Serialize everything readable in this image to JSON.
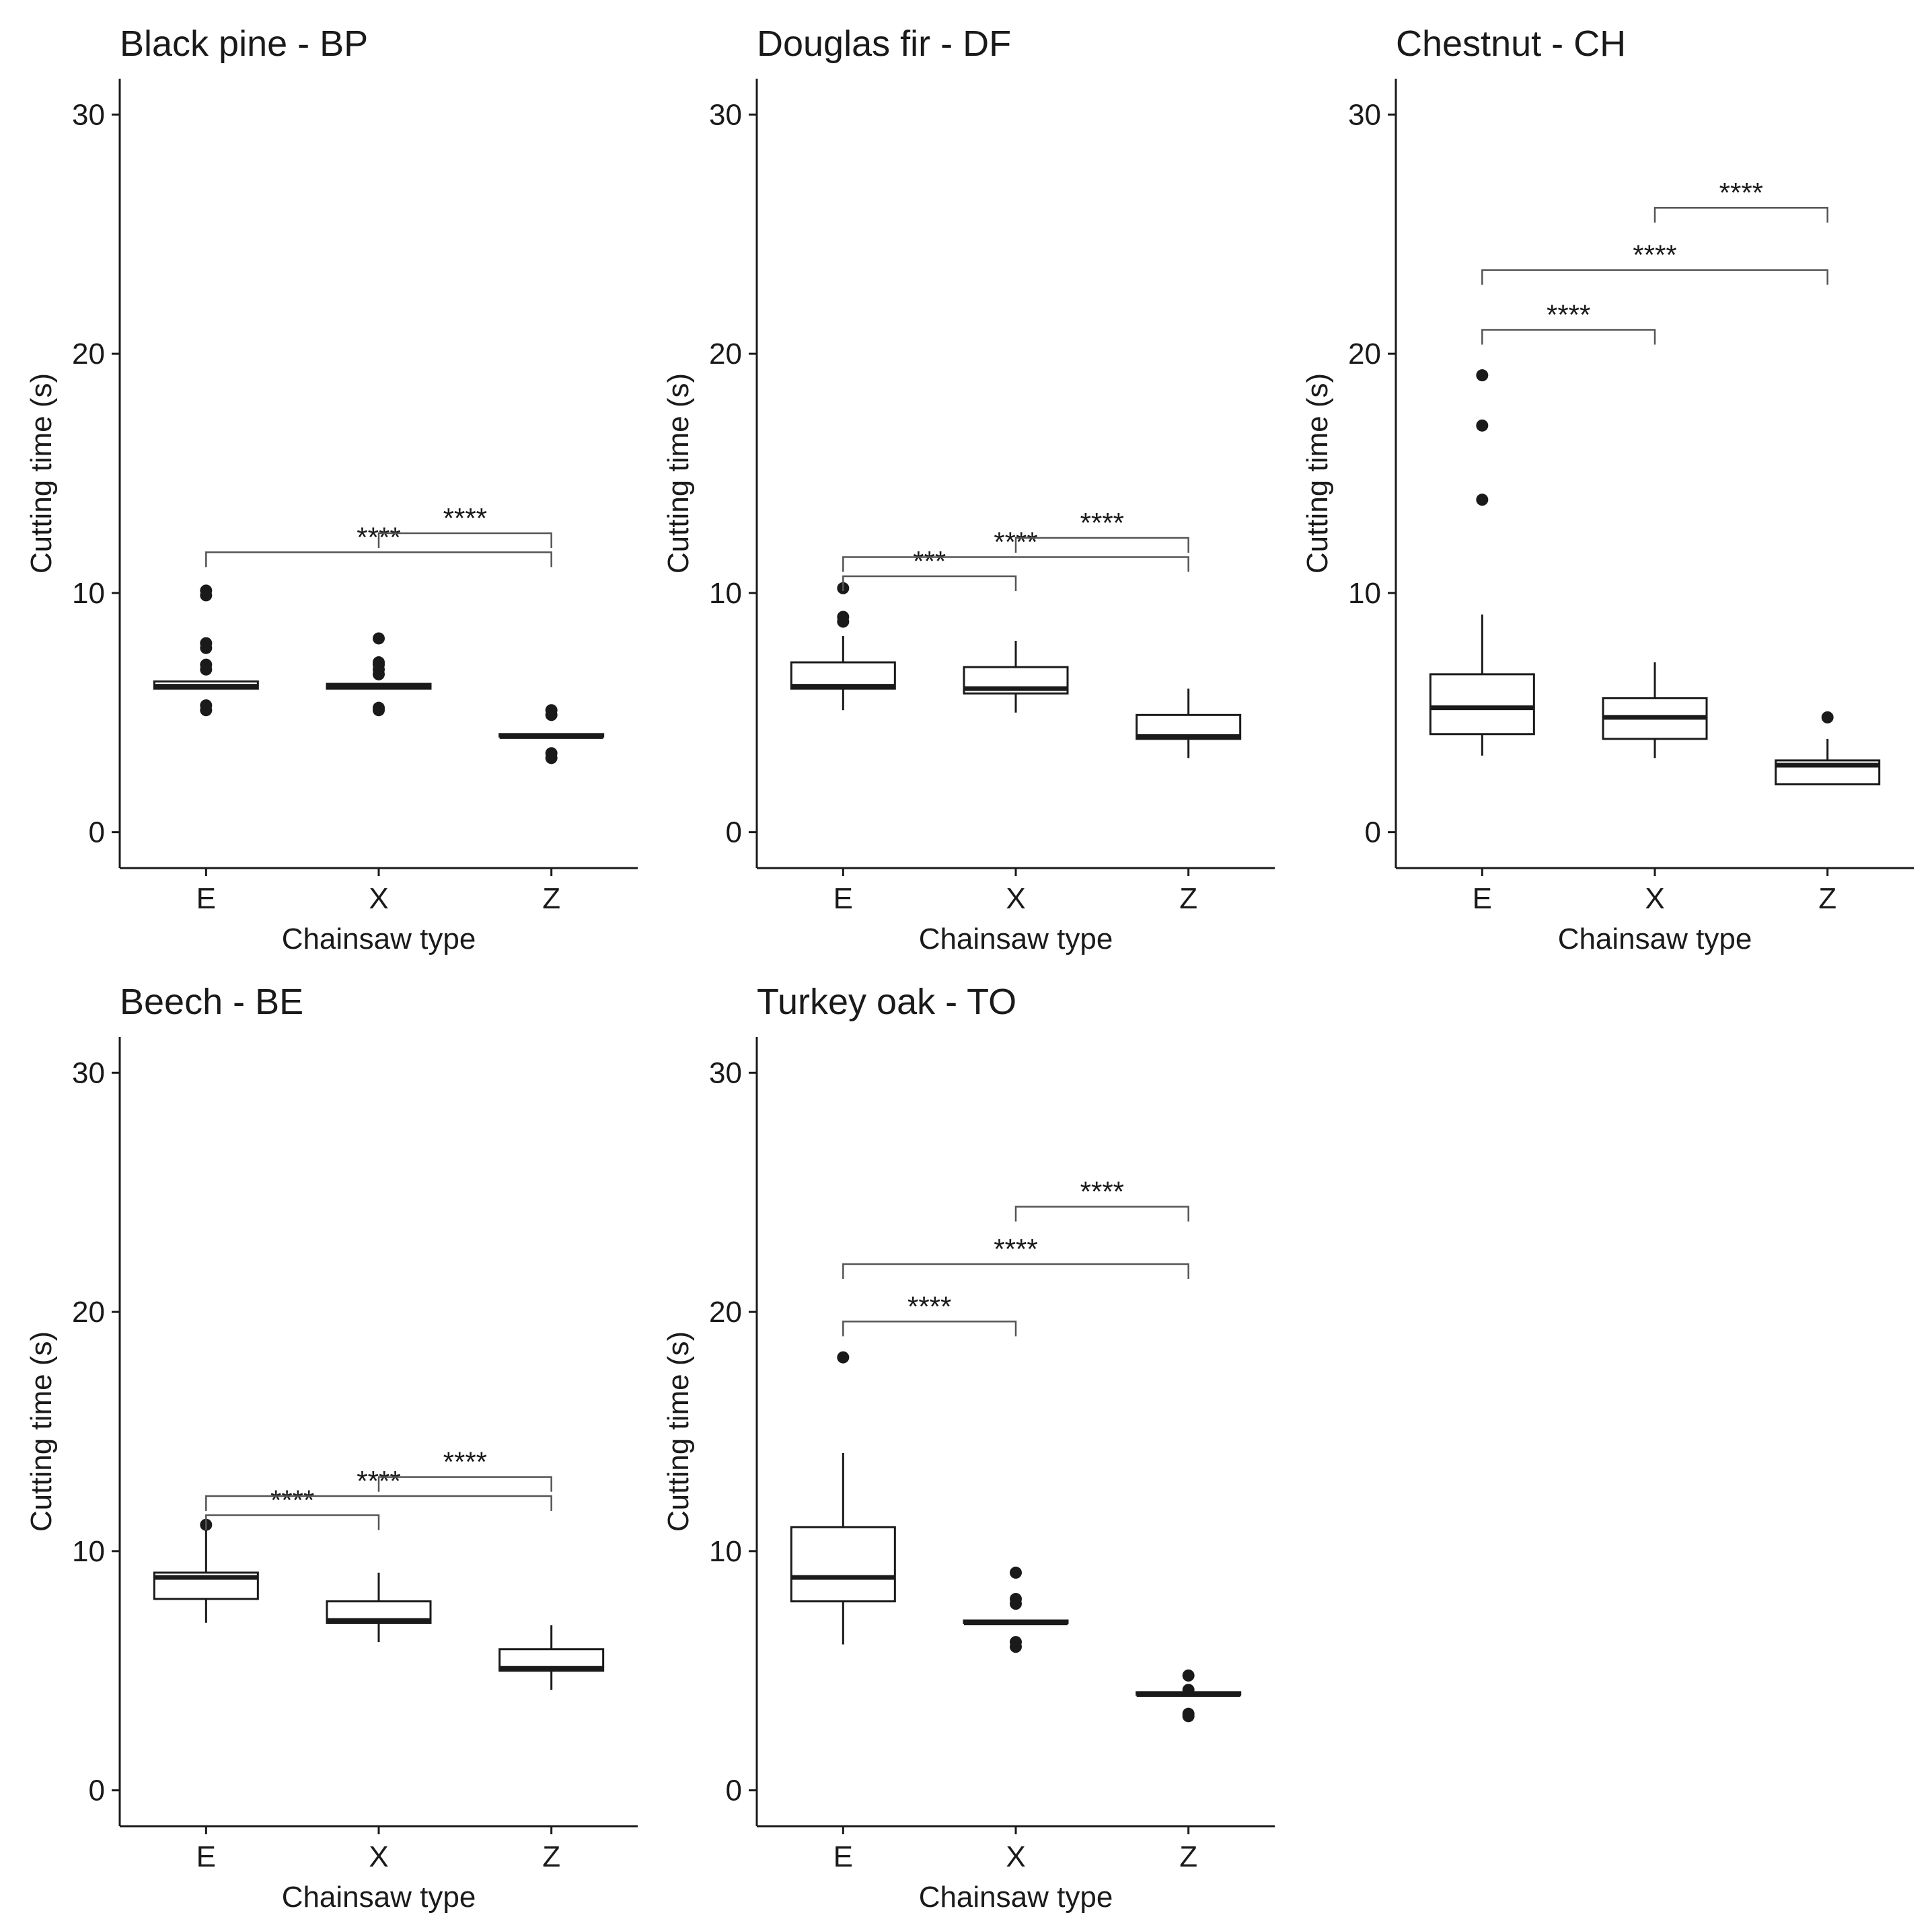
{
  "chart_data": [
    {
      "type": "box",
      "title": "Black pine - BP",
      "xlabel": "Chainsaw type",
      "ylabel": "Cutting time (s)",
      "ylim": [
        -1.5,
        31.5
      ],
      "yticks": [
        0,
        10,
        20,
        30
      ],
      "categories": [
        "E",
        "X",
        "Z"
      ],
      "boxes": [
        {
          "category": "E",
          "whisker_low": 6.0,
          "q1": 6.0,
          "median": 6.1,
          "q3": 6.3,
          "whisker_high": 6.3,
          "outliers": [
            10.1,
            9.9,
            7.9,
            7.7,
            7.0,
            6.8,
            5.3,
            5.1
          ]
        },
        {
          "category": "X",
          "whisker_low": 6.0,
          "q1": 6.0,
          "median": 6.1,
          "q3": 6.2,
          "whisker_high": 6.2,
          "outliers": [
            8.1,
            7.1,
            7.0,
            6.8,
            6.6,
            5.2,
            5.1
          ]
        },
        {
          "category": "Z",
          "whisker_low": 4.0,
          "q1": 4.0,
          "median": 4.0,
          "q3": 4.1,
          "whisker_high": 4.1,
          "outliers": [
            5.1,
            4.9,
            3.3,
            3.1
          ]
        }
      ],
      "comparisons": [
        {
          "from": "E",
          "to": "Z",
          "label": "****",
          "y": 11.7
        },
        {
          "from": "X",
          "to": "Z",
          "label": "****",
          "y": 12.5
        }
      ]
    },
    {
      "type": "box",
      "title": "Douglas fir - DF",
      "xlabel": "Chainsaw type",
      "ylabel": "Cutting time (s)",
      "ylim": [
        -1.5,
        31.5
      ],
      "yticks": [
        0,
        10,
        20,
        30
      ],
      "categories": [
        "E",
        "X",
        "Z"
      ],
      "boxes": [
        {
          "category": "E",
          "whisker_low": 5.1,
          "q1": 6.0,
          "median": 6.1,
          "q3": 7.1,
          "whisker_high": 8.2,
          "outliers": [
            10.2,
            9.0,
            8.8
          ]
        },
        {
          "category": "X",
          "whisker_low": 5.0,
          "q1": 5.8,
          "median": 6.0,
          "q3": 6.9,
          "whisker_high": 8.0,
          "outliers": []
        },
        {
          "category": "Z",
          "whisker_low": 3.1,
          "q1": 3.9,
          "median": 4.0,
          "q3": 4.9,
          "whisker_high": 6.0,
          "outliers": []
        }
      ],
      "comparisons": [
        {
          "from": "E",
          "to": "X",
          "label": "***",
          "y": 10.7
        },
        {
          "from": "E",
          "to": "Z",
          "label": "****",
          "y": 11.5
        },
        {
          "from": "X",
          "to": "Z",
          "label": "****",
          "y": 12.3
        }
      ]
    },
    {
      "type": "box",
      "title": "Chestnut - CH",
      "xlabel": "Chainsaw type",
      "ylabel": "Cutting time (s)",
      "ylim": [
        -1.5,
        31.5
      ],
      "yticks": [
        0,
        10,
        20,
        30
      ],
      "categories": [
        "E",
        "X",
        "Z"
      ],
      "boxes": [
        {
          "category": "E",
          "whisker_low": 3.2,
          "q1": 4.1,
          "median": 5.2,
          "q3": 6.6,
          "whisker_high": 9.1,
          "outliers": [
            19.1,
            17.0,
            13.9
          ]
        },
        {
          "category": "X",
          "whisker_low": 3.1,
          "q1": 3.9,
          "median": 4.8,
          "q3": 5.6,
          "whisker_high": 7.1,
          "outliers": []
        },
        {
          "category": "Z",
          "whisker_low": 2.0,
          "q1": 2.0,
          "median": 2.8,
          "q3": 3.0,
          "whisker_high": 3.9,
          "outliers": [
            4.8
          ]
        }
      ],
      "comparisons": [
        {
          "from": "E",
          "to": "X",
          "label": "****",
          "y": 21.0
        },
        {
          "from": "E",
          "to": "Z",
          "label": "****",
          "y": 23.5
        },
        {
          "from": "X",
          "to": "Z",
          "label": "****",
          "y": 26.1
        }
      ]
    },
    {
      "type": "box",
      "title": "Beech - BE",
      "xlabel": "Chainsaw type",
      "ylabel": "Cutting time (s)",
      "ylim": [
        -1.5,
        31.5
      ],
      "yticks": [
        0,
        10,
        20,
        30
      ],
      "categories": [
        "E",
        "X",
        "Z"
      ],
      "boxes": [
        {
          "category": "E",
          "whisker_low": 7.0,
          "q1": 8.0,
          "median": 8.9,
          "q3": 9.1,
          "whisker_high": 10.9,
          "outliers": [
            11.1
          ]
        },
        {
          "category": "X",
          "whisker_low": 6.2,
          "q1": 7.0,
          "median": 7.1,
          "q3": 7.9,
          "whisker_high": 9.1,
          "outliers": []
        },
        {
          "category": "Z",
          "whisker_low": 4.2,
          "q1": 5.0,
          "median": 5.1,
          "q3": 5.9,
          "whisker_high": 6.9,
          "outliers": []
        }
      ],
      "comparisons": [
        {
          "from": "E",
          "to": "X",
          "label": "****",
          "y": 11.5
        },
        {
          "from": "E",
          "to": "Z",
          "label": "****",
          "y": 12.3
        },
        {
          "from": "X",
          "to": "Z",
          "label": "****",
          "y": 13.1
        }
      ]
    },
    {
      "type": "box",
      "title": "Turkey oak - TO",
      "xlabel": "Chainsaw type",
      "ylabel": "Cutting time (s)",
      "ylim": [
        -1.5,
        31.5
      ],
      "yticks": [
        0,
        10,
        20,
        30
      ],
      "categories": [
        "E",
        "X",
        "Z"
      ],
      "boxes": [
        {
          "category": "E",
          "whisker_low": 6.1,
          "q1": 7.9,
          "median": 8.9,
          "q3": 11.0,
          "whisker_high": 14.1,
          "outliers": [
            18.1
          ]
        },
        {
          "category": "X",
          "whisker_low": 7.0,
          "q1": 7.0,
          "median": 7.0,
          "q3": 7.1,
          "whisker_high": 7.1,
          "outliers": [
            9.1,
            8.0,
            7.8,
            6.2,
            6.0
          ]
        },
        {
          "category": "Z",
          "whisker_low": 4.0,
          "q1": 4.0,
          "median": 4.0,
          "q3": 4.1,
          "whisker_high": 4.1,
          "outliers": [
            4.8,
            4.2,
            3.2,
            3.1
          ]
        }
      ],
      "comparisons": [
        {
          "from": "E",
          "to": "X",
          "label": "****",
          "y": 19.6
        },
        {
          "from": "E",
          "to": "Z",
          "label": "****",
          "y": 22.0
        },
        {
          "from": "X",
          "to": "Z",
          "label": "****",
          "y": 24.4
        }
      ]
    }
  ]
}
